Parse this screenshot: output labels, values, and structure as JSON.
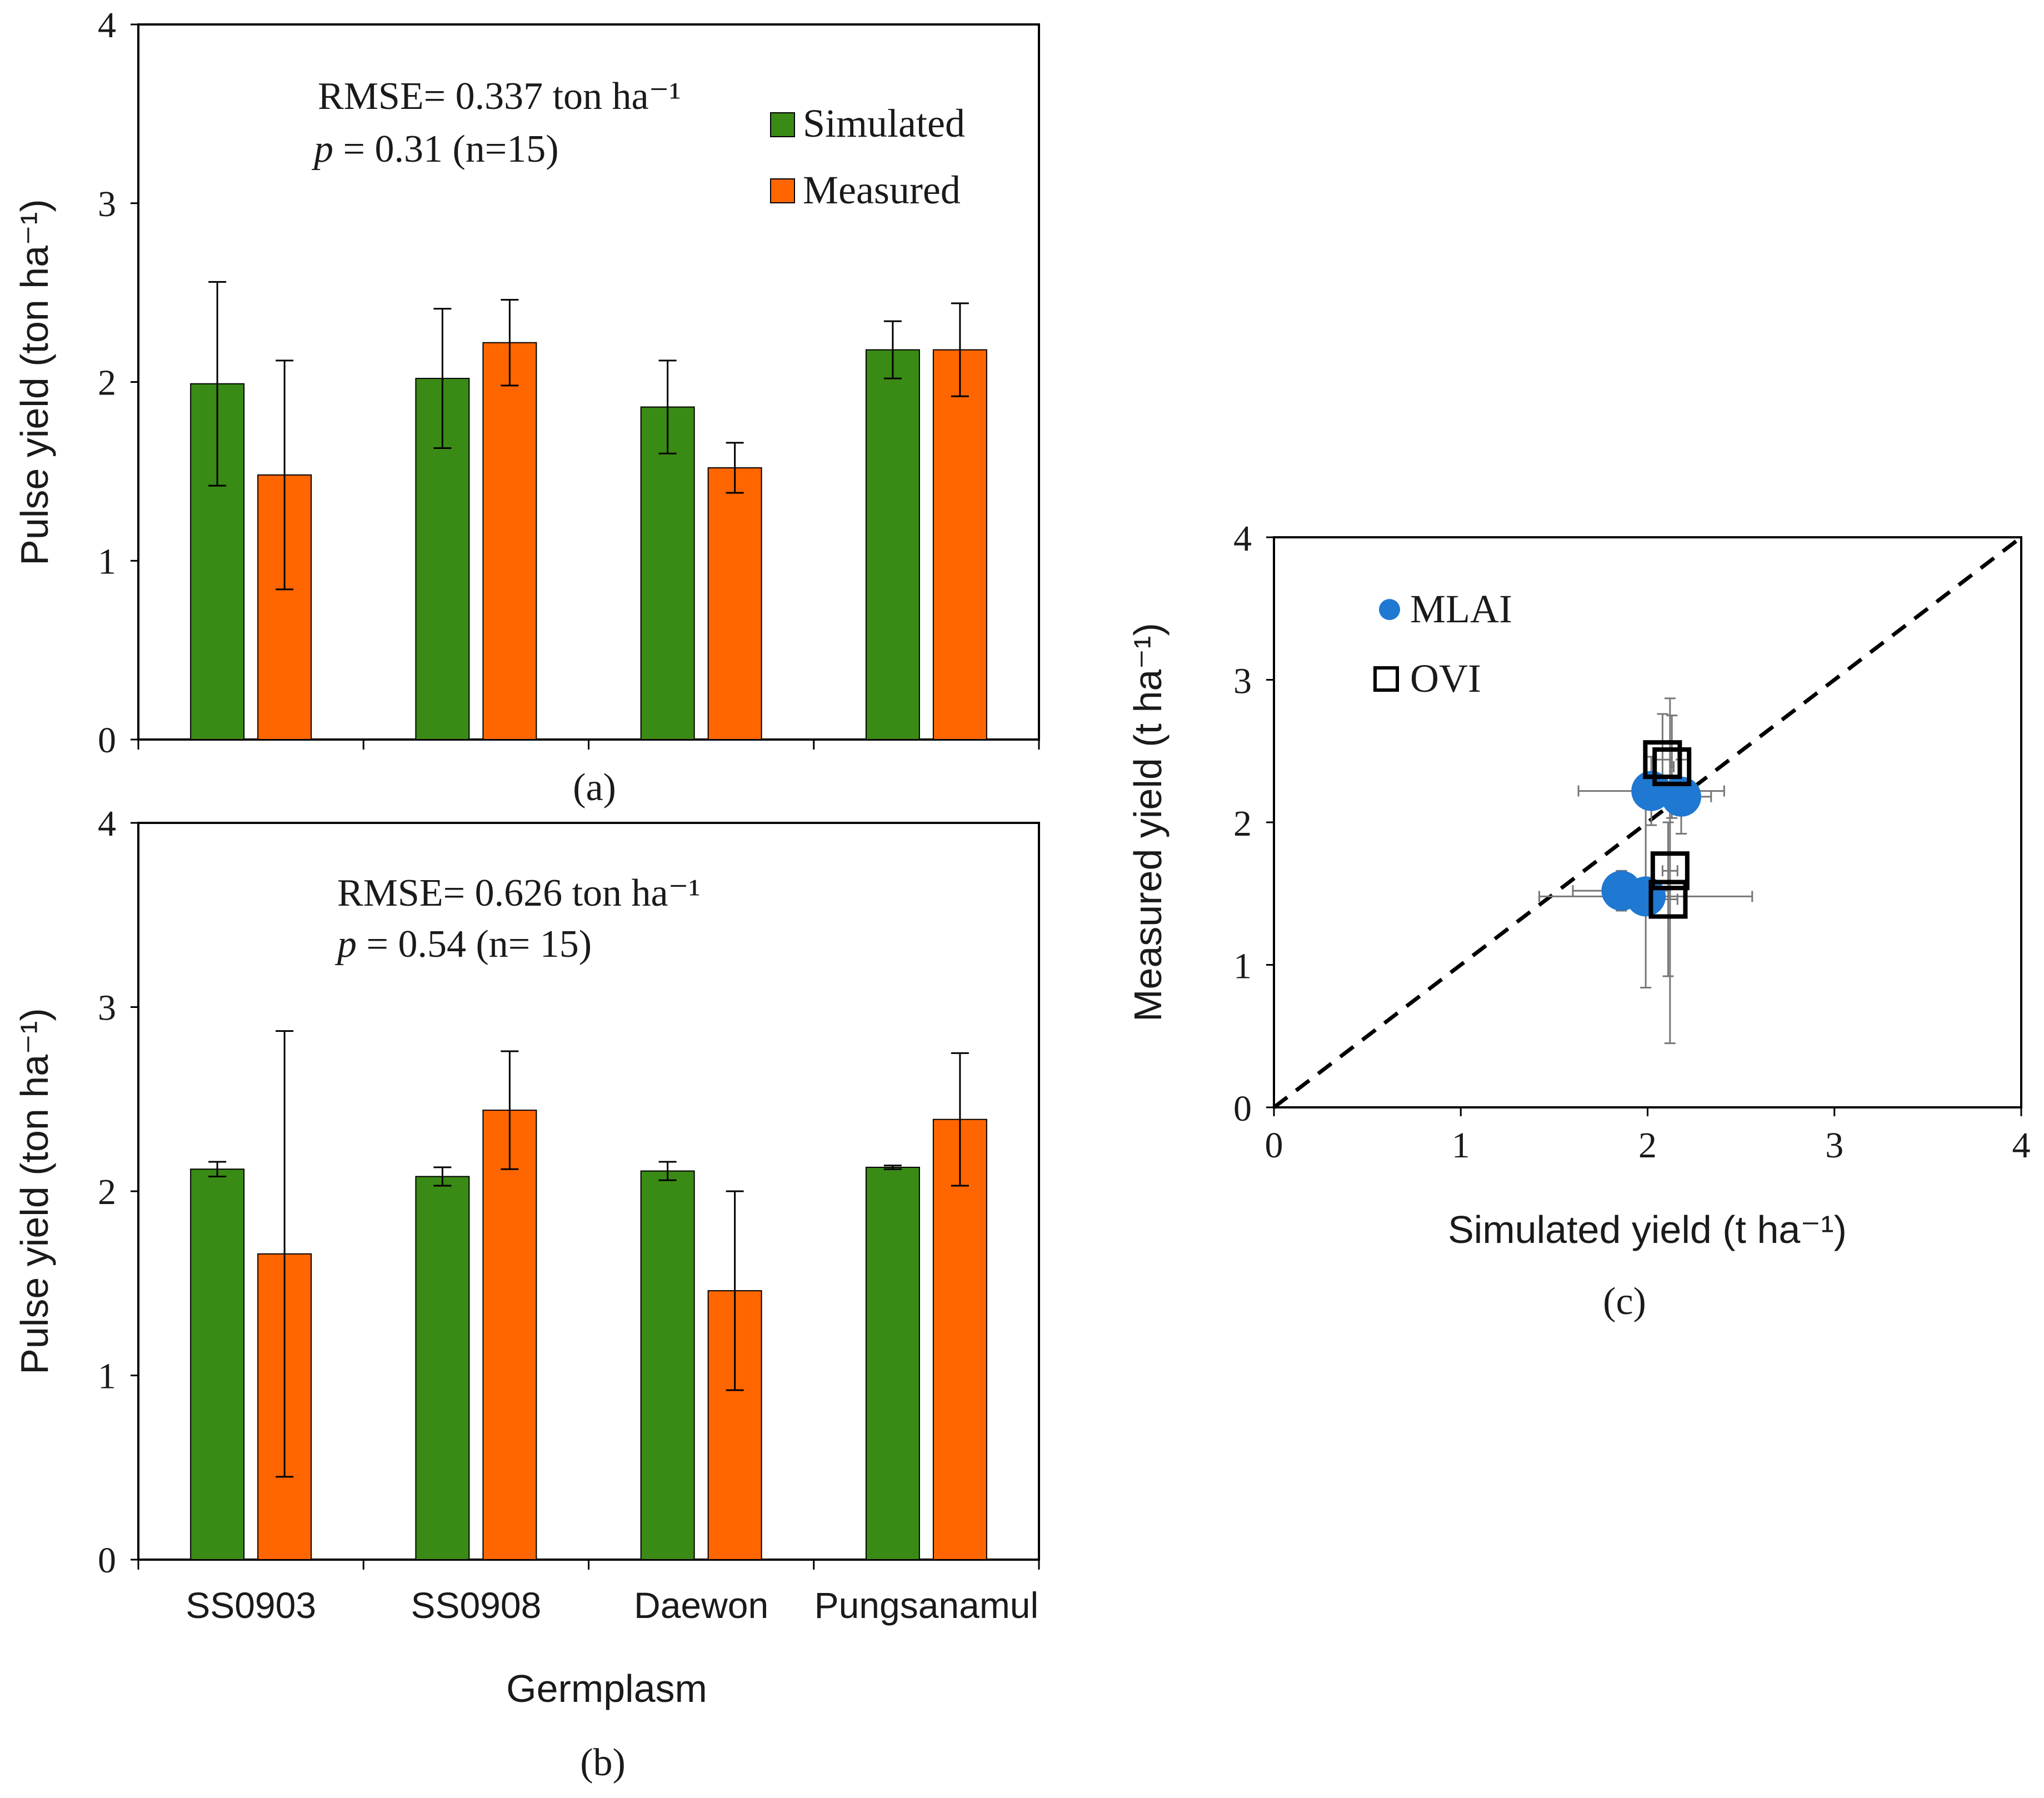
{
  "colors": {
    "simulated": "#3a8a16",
    "measured": "#ff6600",
    "mlai": "#1f78d1",
    "ovi": "#000000"
  },
  "chart_data": [
    {
      "id": "a",
      "type": "bar",
      "caption": "(a)",
      "ylabel": "Pulse yield (ton ha⁻¹)",
      "ylim": [
        0,
        4
      ],
      "yticks": [
        "0",
        "1",
        "2",
        "3",
        "4"
      ],
      "categories": [
        "SS0903",
        "SS0908",
        "Daewon",
        "Pungsanamul"
      ],
      "series": [
        {
          "name": "Simulated",
          "values": [
            1.99,
            2.02,
            1.86,
            2.18
          ],
          "errors": [
            0.57,
            0.39,
            0.26,
            0.16
          ]
        },
        {
          "name": "Measured",
          "values": [
            1.48,
            2.22,
            1.52,
            2.18
          ],
          "errors": [
            0.64,
            0.24,
            0.14,
            0.26
          ]
        }
      ],
      "annotation": {
        "rmse": "RMSE= 0.337 ton ha⁻¹",
        "p_italic": "p",
        "p_rest": " = 0.31 (n=15)"
      },
      "legend": [
        "Simulated",
        "Measured"
      ]
    },
    {
      "id": "b",
      "type": "bar",
      "caption": "(b)",
      "ylabel": "Pulse yield (ton ha⁻¹)",
      "xlabel": "Germplasm",
      "ylim": [
        0,
        4
      ],
      "yticks": [
        "0",
        "1",
        "2",
        "3",
        "4"
      ],
      "categories": [
        "SS0903",
        "SS0908",
        "Daewon",
        "Pungsanamul"
      ],
      "series": [
        {
          "name": "Simulated",
          "values": [
            2.12,
            2.08,
            2.11,
            2.13
          ],
          "errors": [
            0.04,
            0.05,
            0.05,
            0.01
          ]
        },
        {
          "name": "Measured",
          "values": [
            1.66,
            2.44,
            1.46,
            2.39
          ],
          "errors": [
            1.21,
            0.32,
            0.54,
            0.36
          ]
        }
      ],
      "annotation": {
        "rmse": "RMSE= 0.626 ton ha⁻¹",
        "p_italic": "p",
        "p_rest": " = 0.54 (n= 15)"
      }
    },
    {
      "id": "c",
      "type": "scatter",
      "caption": "(c)",
      "xlabel": "Simulated yield (t ha⁻¹)",
      "ylabel": "Measured yield (t ha⁻¹)",
      "xlim": [
        0,
        4
      ],
      "ylim": [
        0,
        4
      ],
      "xticks": [
        "0",
        "1",
        "2",
        "3",
        "4"
      ],
      "yticks": [
        "0",
        "1",
        "2",
        "3",
        "4"
      ],
      "reference_line": "1:1 dashed",
      "legend": [
        "MLAI",
        "OVI"
      ],
      "series": [
        {
          "name": "MLAI",
          "points": [
            {
              "x": 1.99,
              "y": 1.48,
              "xerr": 0.57,
              "yerr": 0.64
            },
            {
              "x": 2.02,
              "y": 2.22,
              "xerr": 0.39,
              "yerr": 0.24
            },
            {
              "x": 1.86,
              "y": 1.52,
              "xerr": 0.26,
              "yerr": 0.14
            },
            {
              "x": 2.18,
              "y": 2.18,
              "xerr": 0.16,
              "yerr": 0.26
            }
          ]
        },
        {
          "name": "OVI",
          "points": [
            {
              "x": 2.12,
              "y": 1.66,
              "xerr": 0.04,
              "yerr": 1.21
            },
            {
              "x": 2.08,
              "y": 2.44,
              "xerr": 0.05,
              "yerr": 0.32
            },
            {
              "x": 2.11,
              "y": 1.46,
              "xerr": 0.05,
              "yerr": 0.54
            },
            {
              "x": 2.13,
              "y": 2.39,
              "xerr": 0.01,
              "yerr": 0.36
            }
          ]
        }
      ]
    }
  ]
}
